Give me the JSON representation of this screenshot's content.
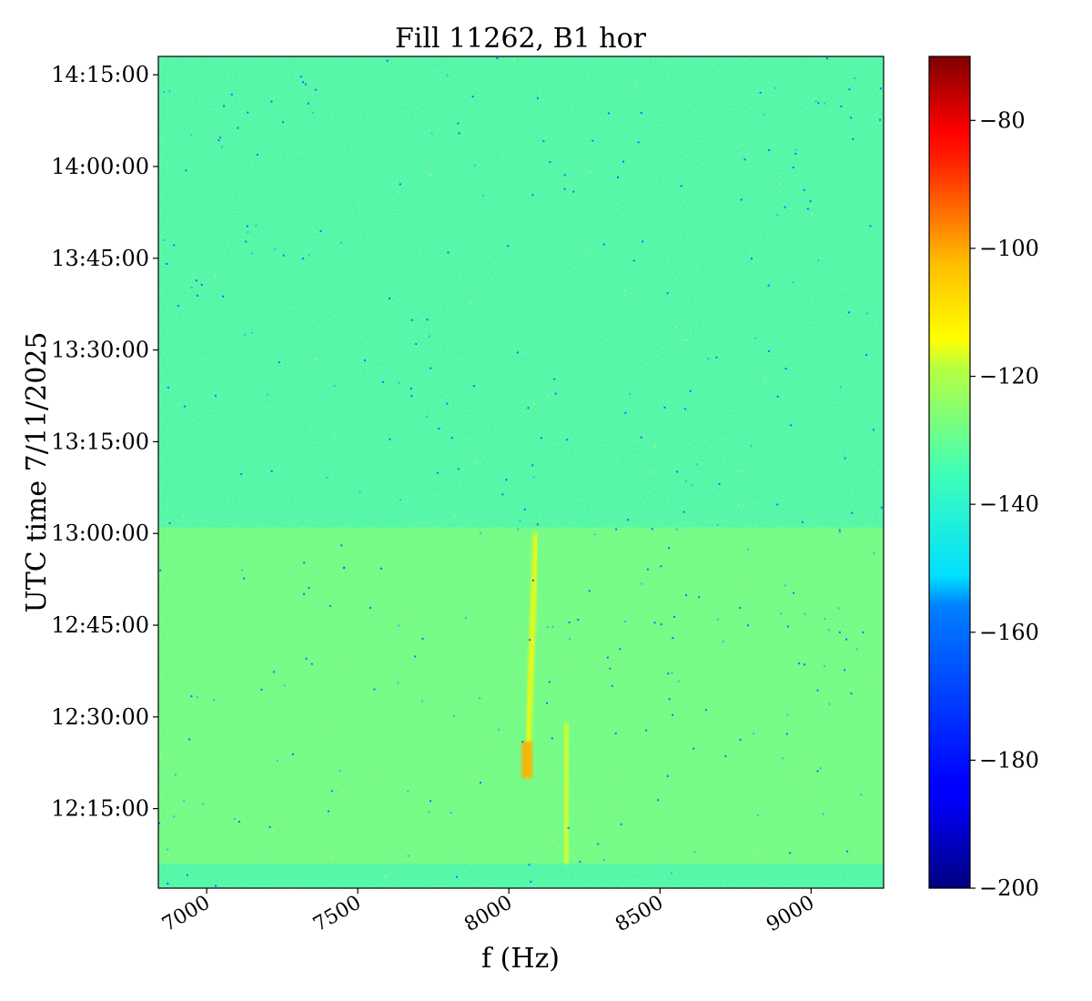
{
  "chart_data": {
    "type": "heatmap",
    "title": "Fill 11262, B1 hor",
    "xlabel": "f (Hz)",
    "ylabel": "UTC time 7/11/2025",
    "xlim": [
      6840,
      9240
    ],
    "ylim_minutes_of_day": [
      722,
      858
    ],
    "xticks": [
      {
        "value": 7000,
        "label": "7000"
      },
      {
        "value": 7500,
        "label": "7500"
      },
      {
        "value": 8000,
        "label": "8000"
      },
      {
        "value": 8500,
        "label": "8500"
      },
      {
        "value": 9000,
        "label": "9000"
      }
    ],
    "yticks": [
      {
        "value": "12:15:00",
        "label": "12:15:00"
      },
      {
        "value": "12:30:00",
        "label": "12:30:00"
      },
      {
        "value": "12:45:00",
        "label": "12:45:00"
      },
      {
        "value": "13:00:00",
        "label": "13:00:00"
      },
      {
        "value": "13:15:00",
        "label": "13:15:00"
      },
      {
        "value": "13:30:00",
        "label": "13:30:00"
      },
      {
        "value": "13:45:00",
        "label": "13:45:00"
      },
      {
        "value": "14:00:00",
        "label": "14:00:00"
      },
      {
        "value": "14:15:00",
        "label": "14:15:00"
      }
    ],
    "colorbar": {
      "range": [
        -200,
        -70
      ],
      "colormap": "jet",
      "ticks": [
        {
          "value": -200,
          "label": "−200"
        },
        {
          "value": -180,
          "label": "−180"
        },
        {
          "value": -160,
          "label": "−160"
        },
        {
          "value": -140,
          "label": "−140"
        },
        {
          "value": -120,
          "label": "−120"
        },
        {
          "value": -100,
          "label": "−100"
        },
        {
          "value": -80,
          "label": "−80"
        }
      ]
    },
    "background_level": -140,
    "features": [
      {
        "description": "elevated noise band",
        "t_start": "12:06:00",
        "t_end": "13:01:00",
        "f_range": [
          6840,
          9240
        ],
        "level": -131
      },
      {
        "description": "drifting line",
        "f_start": 8060,
        "f_end": 8090,
        "t_start": "12:20:00",
        "t_end": "13:00:00",
        "level": -118
      },
      {
        "description": "hot spot",
        "f": 8060,
        "t_start": "12:20:00",
        "t_end": "12:26:00",
        "level": -108
      },
      {
        "description": "static line",
        "f": 8190,
        "t_start": "12:06:00",
        "t_end": "12:29:00",
        "level": -122
      }
    ]
  }
}
